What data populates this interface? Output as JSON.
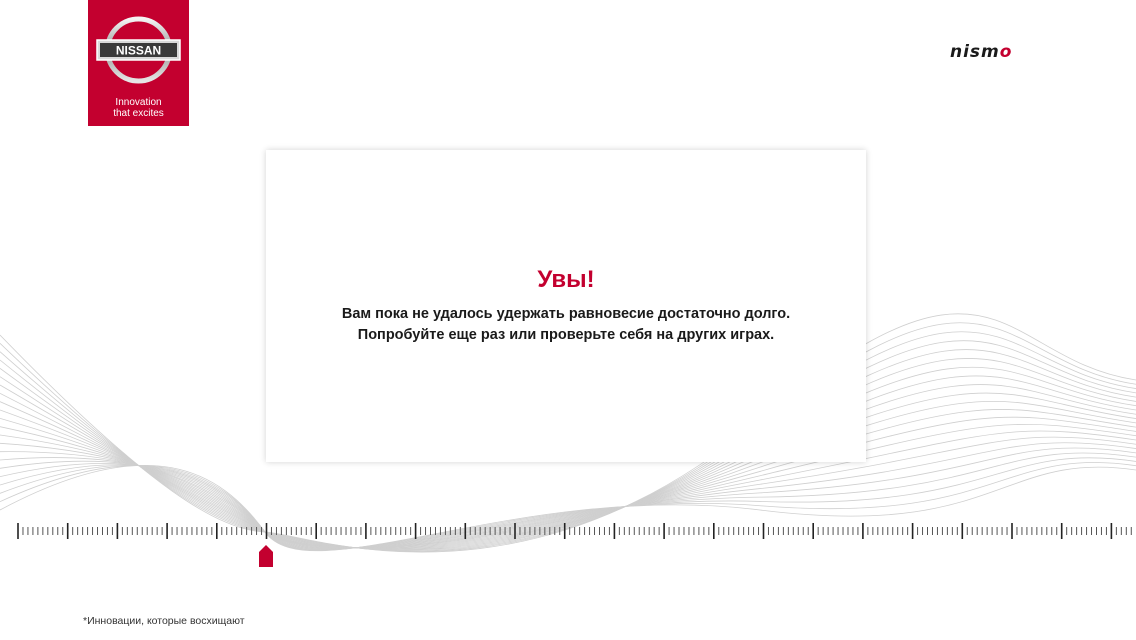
{
  "brand": {
    "logo_text": "NISSAN",
    "tagline_line1": "Innovation",
    "tagline_line2": "that excites",
    "logo_color": "#c3002f",
    "partner_logo": "nismo"
  },
  "dialog": {
    "title": "Увы!",
    "message_line1": "Вам пока не удалось удержать равновесие достаточно долго.",
    "message_line2": "Попробуйте еще раз или проверьте себя на других играх."
  },
  "balance_scale": {
    "marker_icon": "position-marker-icon",
    "marker_color": "#c3002f"
  },
  "footnote": "*Инновации, которые восхищают"
}
